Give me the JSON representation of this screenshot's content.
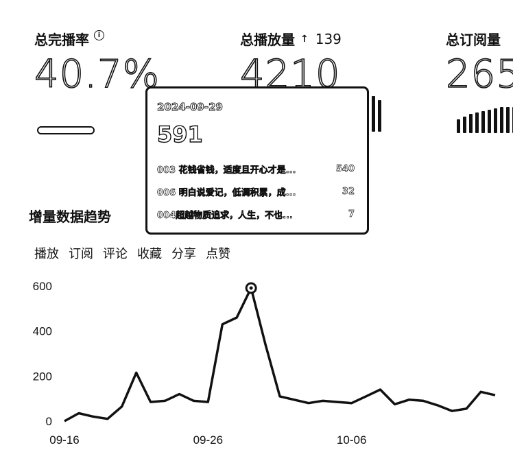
{
  "metrics": [
    {
      "label": "总完播率",
      "value": "40.7%",
      "has_info": true
    },
    {
      "label": "总播放量",
      "value": "4210",
      "delta": "139",
      "delta_direction": "up"
    },
    {
      "label": "总订阅量",
      "value": "265"
    }
  ],
  "section_title": "增量数据趋势",
  "tabs": [
    "播放",
    "订阅",
    "评论",
    "收藏",
    "分享",
    "点赞"
  ],
  "tooltip": {
    "date": "2024-09-29",
    "total": "591",
    "items": [
      {
        "title": "003 花钱省钱，适度且开心才是...",
        "value": "540"
      },
      {
        "title": "006 明白说爱记，低调积累，成...",
        "value": "32"
      },
      {
        "title": "004超越物质追求，人生，不也...",
        "value": "7"
      }
    ]
  },
  "chart_data": {
    "type": "line",
    "x_tick_labels": [
      "09-16",
      "09-26",
      "10-06"
    ],
    "y_ticks": [
      0,
      200,
      400,
      600
    ],
    "ylim": [
      0,
      620
    ],
    "x": [
      "09-16",
      "09-17",
      "09-18",
      "09-19",
      "09-20",
      "09-21",
      "09-22",
      "09-23",
      "09-24",
      "09-25",
      "09-26",
      "09-27",
      "09-28",
      "09-29",
      "09-30",
      "10-01",
      "10-02",
      "10-03",
      "10-04",
      "10-05",
      "10-06",
      "10-07",
      "10-08",
      "10-09",
      "10-10",
      "10-11",
      "10-12",
      "10-13",
      "10-14",
      "10-15",
      "10-16"
    ],
    "series": [
      {
        "values": [
          0,
          35,
          20,
          10,
          65,
          215,
          85,
          90,
          120,
          90,
          85,
          430,
          460,
          591,
          340,
          110,
          95,
          80,
          90,
          85,
          80,
          110,
          140,
          75,
          95,
          90,
          70,
          45,
          55,
          130,
          115
        ]
      }
    ],
    "highlight_index": 13,
    "grid": false
  }
}
